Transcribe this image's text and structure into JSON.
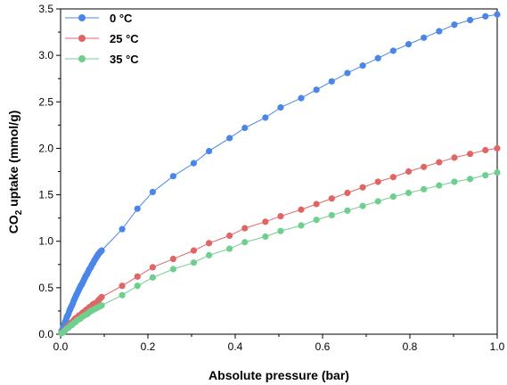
{
  "chart_data": {
    "type": "scatter",
    "title": "",
    "xlabel": "Absolute pressure (bar)",
    "ylabel_main": "CO",
    "ylabel_sub": "2",
    "ylabel_rest": " uptake (mmol/g)",
    "xlim": [
      0.0,
      1.0
    ],
    "ylim": [
      0.0,
      3.5
    ],
    "xticks": [
      "0.0",
      "0.2",
      "0.4",
      "0.6",
      "0.8",
      "1.0"
    ],
    "yticks": [
      "0.0",
      "0.5",
      "1.0",
      "1.5",
      "2.0",
      "2.5",
      "3.0",
      "3.5"
    ],
    "legend_position": "top-left",
    "grid": false,
    "series": [
      {
        "name": "0 °C",
        "color": "#4a86e8",
        "x": [
          0.002,
          0.004,
          0.006,
          0.008,
          0.01,
          0.012,
          0.014,
          0.016,
          0.018,
          0.02,
          0.022,
          0.024,
          0.026,
          0.028,
          0.03,
          0.032,
          0.034,
          0.036,
          0.038,
          0.04,
          0.042,
          0.044,
          0.046,
          0.048,
          0.05,
          0.052,
          0.054,
          0.056,
          0.058,
          0.06,
          0.062,
          0.064,
          0.066,
          0.068,
          0.07,
          0.072,
          0.074,
          0.076,
          0.078,
          0.08,
          0.082,
          0.084,
          0.086,
          0.088,
          0.09,
          0.092,
          0.094,
          0.141,
          0.176,
          0.211,
          0.258,
          0.305,
          0.34,
          0.387,
          0.422,
          0.469,
          0.504,
          0.551,
          0.586,
          0.621,
          0.657,
          0.692,
          0.727,
          0.762,
          0.797,
          0.832,
          0.867,
          0.902,
          0.938,
          0.973,
          1.0
        ],
        "y": [
          0.03,
          0.05,
          0.08,
          0.1,
          0.13,
          0.15,
          0.18,
          0.2,
          0.22,
          0.25,
          0.27,
          0.29,
          0.31,
          0.33,
          0.36,
          0.38,
          0.4,
          0.42,
          0.44,
          0.46,
          0.48,
          0.5,
          0.52,
          0.53,
          0.55,
          0.57,
          0.59,
          0.61,
          0.63,
          0.64,
          0.66,
          0.68,
          0.7,
          0.71,
          0.73,
          0.75,
          0.76,
          0.78,
          0.8,
          0.81,
          0.83,
          0.84,
          0.86,
          0.87,
          0.88,
          0.89,
          0.9,
          1.13,
          1.35,
          1.53,
          1.7,
          1.84,
          1.97,
          2.11,
          2.22,
          2.33,
          2.44,
          2.54,
          2.63,
          2.72,
          2.81,
          2.89,
          2.97,
          3.05,
          3.12,
          3.19,
          3.26,
          3.33,
          3.38,
          3.42,
          3.44
        ]
      },
      {
        "name": "25 °C",
        "color": "#e06666",
        "x": [
          0.002,
          0.006,
          0.01,
          0.014,
          0.018,
          0.022,
          0.026,
          0.03,
          0.034,
          0.038,
          0.042,
          0.046,
          0.05,
          0.054,
          0.058,
          0.062,
          0.066,
          0.07,
          0.074,
          0.078,
          0.082,
          0.086,
          0.09,
          0.094,
          0.141,
          0.176,
          0.211,
          0.258,
          0.305,
          0.34,
          0.387,
          0.422,
          0.469,
          0.504,
          0.551,
          0.586,
          0.621,
          0.657,
          0.692,
          0.727,
          0.762,
          0.797,
          0.832,
          0.867,
          0.902,
          0.938,
          0.973,
          1.0
        ],
        "y": [
          0.01,
          0.03,
          0.05,
          0.07,
          0.09,
          0.11,
          0.13,
          0.15,
          0.17,
          0.18,
          0.2,
          0.21,
          0.23,
          0.24,
          0.26,
          0.27,
          0.29,
          0.3,
          0.32,
          0.33,
          0.34,
          0.36,
          0.38,
          0.4,
          0.52,
          0.62,
          0.72,
          0.81,
          0.9,
          0.98,
          1.06,
          1.14,
          1.21,
          1.27,
          1.34,
          1.4,
          1.46,
          1.52,
          1.58,
          1.64,
          1.69,
          1.75,
          1.8,
          1.85,
          1.9,
          1.94,
          1.98,
          2.0
        ]
      },
      {
        "name": "35 °C",
        "color": "#6fcf8e",
        "x": [
          0.002,
          0.006,
          0.01,
          0.014,
          0.018,
          0.022,
          0.026,
          0.03,
          0.034,
          0.038,
          0.042,
          0.046,
          0.05,
          0.054,
          0.058,
          0.062,
          0.066,
          0.07,
          0.074,
          0.078,
          0.082,
          0.086,
          0.09,
          0.094,
          0.141,
          0.176,
          0.211,
          0.258,
          0.305,
          0.34,
          0.387,
          0.422,
          0.469,
          0.504,
          0.551,
          0.586,
          0.621,
          0.657,
          0.692,
          0.727,
          0.762,
          0.797,
          0.832,
          0.867,
          0.902,
          0.938,
          0.973,
          1.0
        ],
        "y": [
          0.01,
          0.02,
          0.04,
          0.06,
          0.07,
          0.09,
          0.1,
          0.12,
          0.13,
          0.15,
          0.16,
          0.17,
          0.19,
          0.2,
          0.21,
          0.22,
          0.24,
          0.25,
          0.26,
          0.27,
          0.28,
          0.29,
          0.3,
          0.31,
          0.42,
          0.52,
          0.61,
          0.7,
          0.77,
          0.85,
          0.92,
          0.99,
          1.05,
          1.11,
          1.17,
          1.23,
          1.28,
          1.33,
          1.38,
          1.43,
          1.48,
          1.52,
          1.56,
          1.6,
          1.64,
          1.67,
          1.71,
          1.74
        ]
      }
    ]
  }
}
